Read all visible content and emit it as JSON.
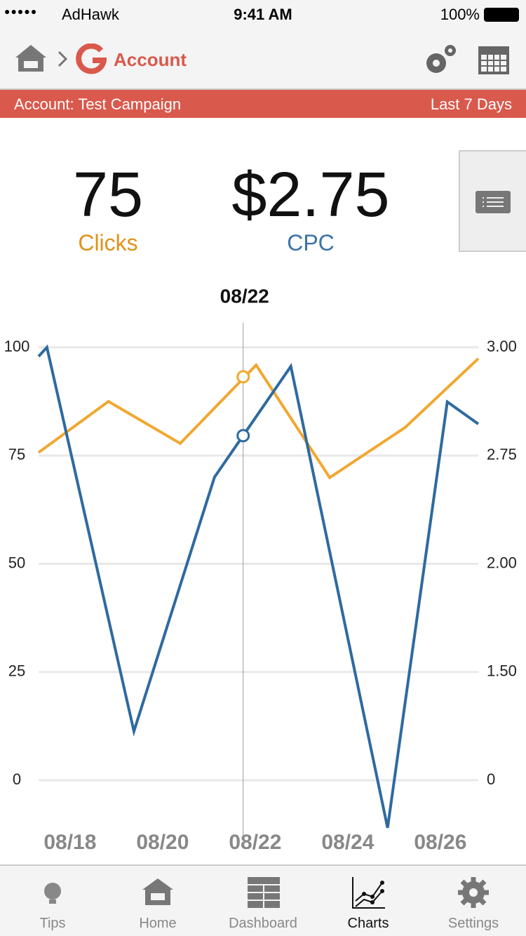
{
  "status": {
    "carrier": "AdHawk",
    "time": "9:41 AM",
    "battery": "100%"
  },
  "nav": {
    "title": "Account"
  },
  "banner": {
    "account": "Account: Test Campaign",
    "range": "Last 7 Days"
  },
  "metrics": [
    {
      "value": "75",
      "label": "Clicks"
    },
    {
      "value": "$2.75",
      "label": "CPC"
    }
  ],
  "chart_data": {
    "type": "line",
    "xlim": [
      17.32,
      26.82
    ],
    "xticks": [
      {
        "value": 18,
        "label": "08/18"
      },
      {
        "value": 20,
        "label": "08/20"
      },
      {
        "value": 22,
        "label": "08/22"
      },
      {
        "value": 24,
        "label": "08/24"
      },
      {
        "value": 26,
        "label": "08/26"
      }
    ],
    "ylim": [
      0,
      100
    ],
    "yticks": [
      0,
      25,
      50,
      75,
      100
    ],
    "y2_labels": [
      "0",
      "1.50",
      "2.00",
      "2.75",
      "3.00"
    ],
    "grid": true,
    "series": [
      {
        "name": "Clicks",
        "color": "#f0a830",
        "x": [
          17.32,
          18.83,
          20.38,
          22.02,
          23.61,
          25.24,
          26.82
        ],
        "values": [
          75.7,
          87.5,
          77.8,
          95.9,
          69.9,
          81.5,
          97.4
        ]
      },
      {
        "name": "CPC",
        "color": "#2e6aa0",
        "x": [
          17.32,
          17.5,
          19.38,
          21.12,
          22.77,
          24.86,
          26.15,
          26.82
        ],
        "values": [
          97.9,
          100,
          11.3,
          70,
          95.6,
          -11,
          87.4,
          82.3
        ]
      }
    ],
    "highlight": {
      "label": "08/22",
      "x": 21.74,
      "values": [
        93.2,
        79.6
      ]
    }
  },
  "tabs": [
    "Tips",
    "Home",
    "Dashboard",
    "Charts",
    "Settings"
  ]
}
